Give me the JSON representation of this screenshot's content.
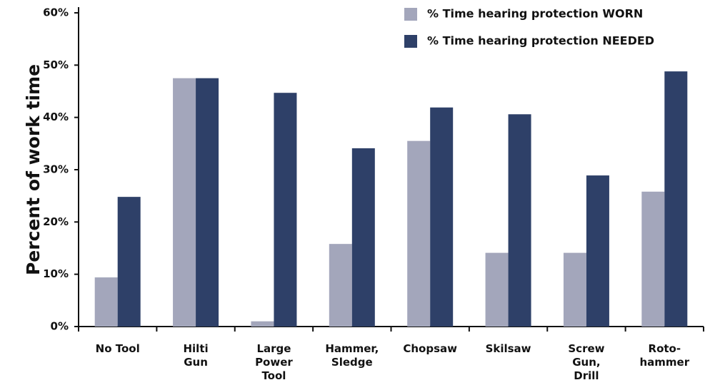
{
  "chart_data": {
    "type": "bar",
    "y_label": "Percent of work time",
    "categories": [
      "No Tool",
      "Hilti\nGun",
      "Large\nPower\nTool",
      "Hammer,\nSledge",
      "Chopsaw",
      "Skilsaw",
      "Screw\nGun,\nDrill",
      "Roto-\nhammer"
    ],
    "series": [
      {
        "name": "% Time hearing protection WORN",
        "color": "#a3a6bb",
        "values": [
          9.4,
          47.5,
          1.0,
          15.8,
          35.5,
          14.1,
          14.1,
          25.8
        ]
      },
      {
        "name": "% Time hearing protection NEEDED",
        "color": "#2e4068",
        "values": [
          24.8,
          47.5,
          44.7,
          34.1,
          41.9,
          40.6,
          28.9,
          48.8
        ]
      }
    ],
    "ylim": [
      0,
      60
    ],
    "yticks": [
      {
        "value": 0,
        "label": "0%"
      },
      {
        "value": 10,
        "label": "10%"
      },
      {
        "value": 20,
        "label": "20%"
      },
      {
        "value": 30,
        "label": "30%"
      },
      {
        "value": 40,
        "label": "40%"
      },
      {
        "value": 50,
        "label": "50%"
      },
      {
        "value": 60,
        "label": "60%"
      }
    ],
    "grid": false,
    "legend": "top-right"
  }
}
